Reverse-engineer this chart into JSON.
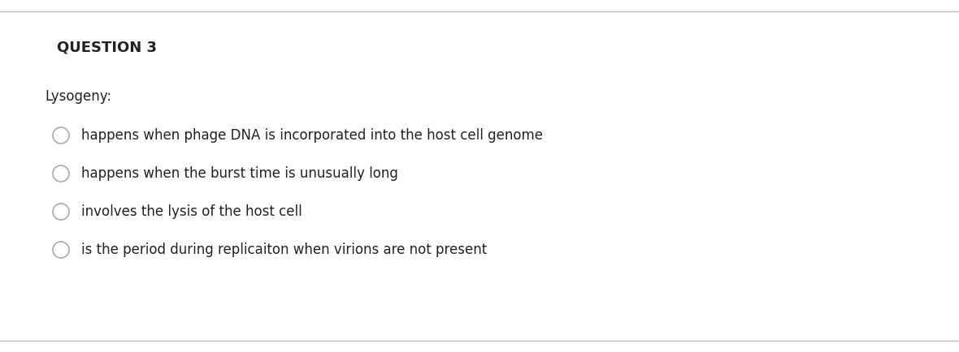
{
  "background_color": "#ffffff",
  "top_line_color": "#bbbbbb",
  "bottom_line_color": "#bbbbbb",
  "question_label": "QUESTION 3",
  "question_label_fontsize": 13,
  "question_label_bold": true,
  "question_label_color": "#222222",
  "prompt_text": "Lysogeny:",
  "prompt_fontsize": 12,
  "prompt_color": "#222222",
  "options": [
    "happens when phage DNA is incorporated into the host cell genome",
    "happens when the burst time is unusually long",
    "involves the lysis of the host cell",
    "is the period during replicaiton when virions are not present"
  ],
  "options_fontsize": 12,
  "options_color": "#222222",
  "circle_edge_color": "#aaaaaa",
  "circle_face_color": "#ffffff",
  "circle_linewidth": 1.2
}
